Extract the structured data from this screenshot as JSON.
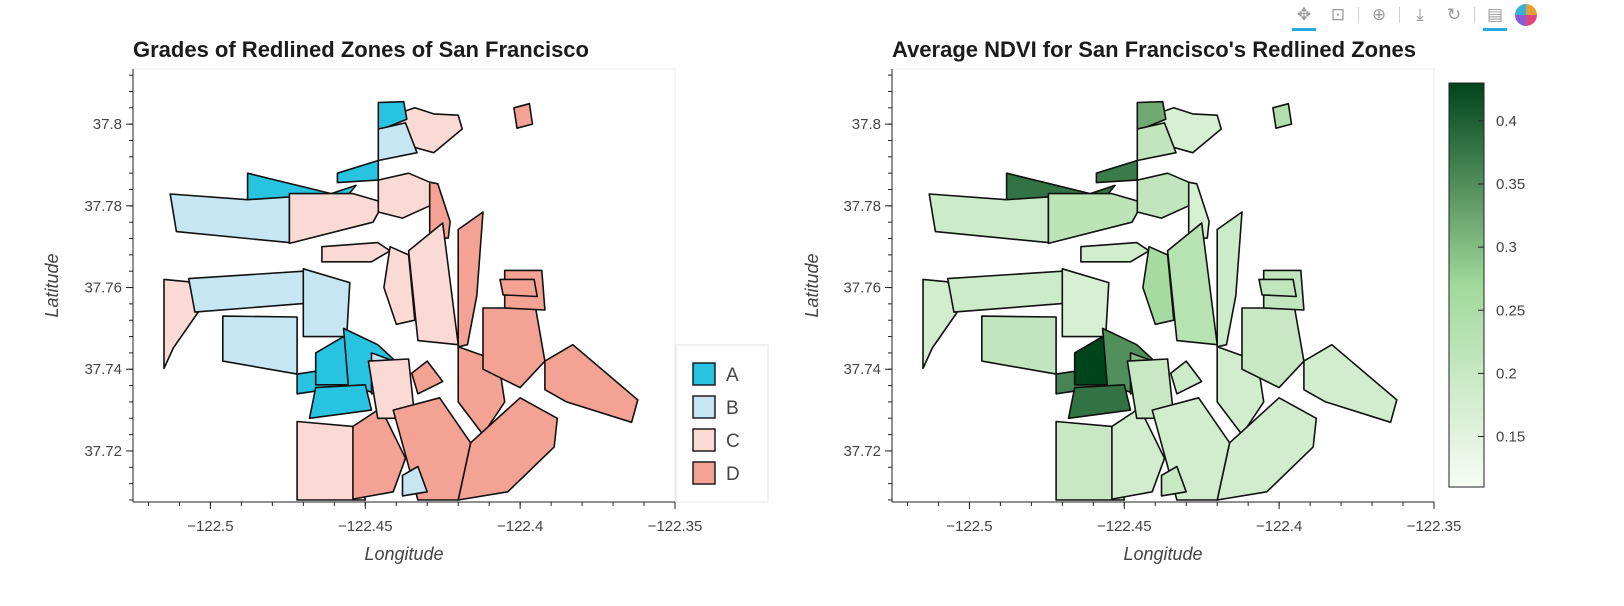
{
  "toolbar": {
    "tools": [
      {
        "name": "pan-tool-icon",
        "glyph": "✥",
        "active": true
      },
      {
        "name": "box-zoom-tool-icon",
        "glyph": "⊡",
        "active": false
      },
      {
        "name": "wheel-zoom-tool-icon",
        "glyph": "⊕",
        "active": false
      },
      {
        "name": "save-tool-icon",
        "glyph": "⤓",
        "active": false
      },
      {
        "name": "reset-tool-icon",
        "glyph": "↻",
        "active": false
      },
      {
        "name": "hover-tool-icon",
        "glyph": "▤",
        "active": true
      },
      {
        "name": "bokeh-logo-icon",
        "glyph": "",
        "active": false
      }
    ]
  },
  "chart_data": [
    {
      "type": "choropleth-map",
      "title": "Grades of Redlined Zones of San Francisco",
      "xlabel": "Longitude",
      "ylabel": "Latitude",
      "xlim": [
        -122.525,
        -122.35
      ],
      "ylim": [
        37.7075,
        37.8135
      ],
      "xticks": [
        -122.5,
        -122.45,
        -122.4,
        -122.35
      ],
      "xtick_labels": [
        "−122.5",
        "−122.45",
        "−122.4",
        "−122.35"
      ],
      "yticks": [
        37.72,
        37.74,
        37.76,
        37.78,
        37.8
      ],
      "ytick_labels": [
        "37.72",
        "37.74",
        "37.76",
        "37.78",
        "37.8"
      ],
      "legend": {
        "position": "right",
        "entries": [
          {
            "label": "A",
            "color": "#28c3e0"
          },
          {
            "label": "B",
            "color": "#c5e6f2"
          },
          {
            "label": "C",
            "color": "#fbdad5"
          },
          {
            "label": "D",
            "color": "#f3a294"
          }
        ]
      },
      "zones": [
        {
          "id": 1,
          "grade": "D",
          "ndvi": 0.17,
          "coords": [
            [
              -122.4292,
              37.7858
            ],
            [
              -122.4266,
              37.7854
            ],
            [
              -122.4226,
              37.7762
            ],
            [
              -122.4232,
              37.7721
            ],
            [
              -122.4292,
              37.7721
            ]
          ]
        },
        {
          "id": 2,
          "grade": "C",
          "ndvi": 0.17,
          "coords": [
            [
              -122.4411,
              37.8022
            ],
            [
              -122.434,
              37.804
            ],
            [
              -122.4279,
              37.8025
            ],
            [
              -122.42,
              37.8022
            ],
            [
              -122.4187,
              37.7988
            ],
            [
              -122.4279,
              37.793
            ],
            [
              -122.4421,
              37.796
            ]
          ]
        },
        {
          "id": 3,
          "grade": "A",
          "ndvi": 0.32,
          "coords": [
            [
              -122.4458,
              37.8053
            ],
            [
              -122.4376,
              37.8055
            ],
            [
              -122.4366,
              37.8012
            ],
            [
              -122.4458,
              37.7984
            ]
          ]
        },
        {
          "id": 4,
          "grade": "B",
          "ndvi": 0.21,
          "coords": [
            [
              -122.4458,
              37.7988
            ],
            [
              -122.437,
              37.8003
            ],
            [
              -122.4333,
              37.793
            ],
            [
              -122.4458,
              37.7911
            ]
          ]
        },
        {
          "id": 5,
          "grade": "A",
          "ndvi": 0.38,
          "coords": [
            [
              -122.488,
              37.788
            ],
            [
              -122.461,
              37.783
            ],
            [
              -122.453,
              37.785
            ],
            [
              -122.4568,
              37.7815
            ],
            [
              -122.488,
              37.7815
            ]
          ]
        },
        {
          "id": 6,
          "grade": "A",
          "ndvi": 0.37,
          "coords": [
            [
              -122.4458,
              37.7911
            ],
            [
              -122.459,
              37.788
            ],
            [
              -122.459,
              37.7857
            ],
            [
              -122.4458,
              37.7863
            ]
          ]
        },
        {
          "id": 7,
          "grade": "B",
          "ndvi": 0.19,
          "coords": [
            [
              -122.513,
              37.7829
            ],
            [
              -122.488,
              37.7815
            ],
            [
              -122.4745,
              37.7822
            ],
            [
              -122.4745,
              37.771
            ],
            [
              -122.511,
              37.7737
            ]
          ]
        },
        {
          "id": 8,
          "grade": "C",
          "ndvi": 0.22,
          "coords": [
            [
              -122.4745,
              37.783
            ],
            [
              -122.454,
              37.783
            ],
            [
              -122.444,
              37.7808
            ],
            [
              -122.4475,
              37.776
            ],
            [
              -122.4745,
              37.7708
            ]
          ]
        },
        {
          "id": 9,
          "grade": "C",
          "ndvi": 0.21,
          "coords": [
            [
              -122.4458,
              37.7863
            ],
            [
              -122.436,
              37.788
            ],
            [
              -122.4292,
              37.7858
            ],
            [
              -122.4292,
              37.78
            ],
            [
              -122.438,
              37.777
            ],
            [
              -122.4458,
              37.7785
            ]
          ]
        },
        {
          "id": 10,
          "grade": "C",
          "ndvi": 0.18,
          "coords": [
            [
              -122.464,
              37.77
            ],
            [
              -122.446,
              37.771
            ],
            [
              -122.442,
              37.769
            ],
            [
              -122.448,
              37.7663
            ],
            [
              -122.464,
              37.7663
            ]
          ]
        },
        {
          "id": 11,
          "grade": "C",
          "ndvi": 0.18,
          "coords": [
            [
              -122.515,
              37.762
            ],
            [
              -122.507,
              37.7614
            ],
            [
              -122.503,
              37.755
            ],
            [
              -122.512,
              37.7452
            ],
            [
              -122.515,
              37.7402
            ]
          ]
        },
        {
          "id": 12,
          "grade": "B",
          "ndvi": 0.19,
          "coords": [
            [
              -122.507,
              37.7622
            ],
            [
              -122.47,
              37.764
            ],
            [
              -122.468,
              37.7562
            ],
            [
              -122.505,
              37.754
            ]
          ]
        },
        {
          "id": 13,
          "grade": "B",
          "ndvi": 0.17,
          "coords": [
            [
              -122.47,
              37.7646
            ],
            [
              -122.455,
              37.7612
            ],
            [
              -122.456,
              37.748
            ],
            [
              -122.47,
              37.748
            ]
          ]
        },
        {
          "id": 14,
          "grade": "B",
          "ndvi": 0.21,
          "coords": [
            [
              -122.496,
              37.753
            ],
            [
              -122.472,
              37.7528
            ],
            [
              -122.472,
              37.7388
            ],
            [
              -122.496,
              37.742
            ]
          ]
        },
        {
          "id": 15,
          "grade": "A",
          "ndvi": 0.36,
          "coords": [
            [
              -122.472,
              37.7388
            ],
            [
              -122.46,
              37.7402
            ],
            [
              -122.4582,
              37.7355
            ],
            [
              -122.472,
              37.734
            ]
          ]
        },
        {
          "id": 16,
          "grade": "A",
          "ndvi": 0.43,
          "coords": [
            [
              -122.466,
              37.744
            ],
            [
              -122.457,
              37.748
            ],
            [
              -122.45,
              37.745
            ],
            [
              -122.455,
              37.7362
            ],
            [
              -122.466,
              37.7362
            ]
          ]
        },
        {
          "id": 17,
          "grade": "A",
          "ndvi": 0.35,
          "coords": [
            [
              -122.457,
              37.75
            ],
            [
              -122.446,
              37.746
            ],
            [
              -122.44,
              37.7418
            ],
            [
              -122.446,
              37.734
            ],
            [
              -122.4555,
              37.736
            ]
          ]
        },
        {
          "id": 18,
          "grade": "A",
          "ndvi": 0.38,
          "coords": [
            [
              -122.466,
              37.7355
            ],
            [
              -122.45,
              37.7362
            ],
            [
              -122.448,
              37.73
            ],
            [
              -122.468,
              37.728
            ]
          ]
        },
        {
          "id": 19,
          "grade": "B",
          "ndvi": 0.3,
          "coords": [
            [
              -122.448,
              37.744
            ],
            [
              -122.44,
              37.7418
            ],
            [
              -122.439,
              37.736
            ],
            [
              -122.448,
              37.734
            ]
          ]
        },
        {
          "id": 20,
          "grade": "C",
          "ndvi": 0.2,
          "coords": [
            [
              -122.472,
              37.7272
            ],
            [
              -122.454,
              37.726
            ],
            [
              -122.45,
              37.708
            ],
            [
              -122.472,
              37.708
            ]
          ]
        },
        {
          "id": 21,
          "grade": "D",
          "ndvi": 0.18,
          "coords": [
            [
              -122.454,
              37.726
            ],
            [
              -122.445,
              37.7305
            ],
            [
              -122.437,
              37.7182
            ],
            [
              -122.441,
              37.71
            ],
            [
              -122.454,
              37.7082
            ]
          ]
        },
        {
          "id": 22,
          "grade": "C",
          "ndvi": 0.2,
          "coords": [
            [
              -122.449,
              37.742
            ],
            [
              -122.436,
              37.7425
            ],
            [
              -122.434,
              37.728
            ],
            [
              -122.446,
              37.728
            ]
          ]
        },
        {
          "id": 23,
          "grade": "D",
          "ndvi": 0.19,
          "coords": [
            [
              -122.435,
              37.739
            ],
            [
              -122.43,
              37.742
            ],
            [
              -122.425,
              37.737
            ],
            [
              -122.433,
              37.734
            ]
          ]
        },
        {
          "id": 24,
          "grade": "C",
          "ndvi": 0.26,
          "coords": [
            [
              -122.442,
              37.77
            ],
            [
              -122.436,
              37.768
            ],
            [
              -122.434,
              37.752
            ],
            [
              -122.44,
              37.751
            ],
            [
              -122.444,
              37.76
            ]
          ]
        },
        {
          "id": 25,
          "grade": "C",
          "ndvi": 0.23,
          "coords": [
            [
              -122.436,
              37.769
            ],
            [
              -122.425,
              37.7758
            ],
            [
              -122.42,
              37.746
            ],
            [
              -122.433,
              37.747
            ]
          ]
        },
        {
          "id": 26,
          "grade": "D",
          "ndvi": 0.19,
          "coords": [
            [
              -122.42,
              37.7742
            ],
            [
              -122.412,
              37.7785
            ],
            [
              -122.414,
              37.758
            ],
            [
              -122.417,
              37.746
            ],
            [
              -122.42,
              37.7455
            ]
          ]
        },
        {
          "id": 27,
          "grade": "D",
          "ndvi": 0.18,
          "coords": [
            [
              -122.42,
              37.7455
            ],
            [
              -122.407,
              37.742
            ],
            [
              -122.405,
              37.732
            ],
            [
              -122.412,
              37.724
            ],
            [
              -122.42,
              37.732
            ]
          ]
        },
        {
          "id": 28,
          "grade": "D",
          "ndvi": 0.2,
          "coords": [
            [
              -122.412,
              37.755
            ],
            [
              -122.395,
              37.755
            ],
            [
              -122.392,
              37.742
            ],
            [
              -122.4,
              37.7355
            ],
            [
              -122.412,
              37.74
            ]
          ]
        },
        {
          "id": 29,
          "grade": "D",
          "ndvi": 0.21,
          "coords": [
            [
              -122.405,
              37.7642
            ],
            [
              -122.393,
              37.7642
            ],
            [
              -122.392,
              37.7545
            ],
            [
              -122.405,
              37.755
            ]
          ]
        },
        {
          "id": 30,
          "grade": "D",
          "ndvi": 0.21,
          "coords": [
            [
              -122.4065,
              37.762
            ],
            [
              -122.3955,
              37.762
            ],
            [
              -122.3945,
              37.7578
            ],
            [
              -122.4055,
              37.7582
            ]
          ]
        },
        {
          "id": 31,
          "grade": "D",
          "ndvi": 0.18,
          "coords": [
            [
              -122.392,
              37.742
            ],
            [
              -122.383,
              37.746
            ],
            [
              -122.362,
              37.7325
            ],
            [
              -122.364,
              37.727
            ],
            [
              -122.385,
              37.732
            ],
            [
              -122.392,
              37.735
            ]
          ]
        },
        {
          "id": 32,
          "grade": "D",
          "ndvi": 0.18,
          "coords": [
            [
              -122.416,
              37.722
            ],
            [
              -122.4,
              37.733
            ],
            [
              -122.388,
              37.728
            ],
            [
              -122.389,
              37.721
            ],
            [
              -122.404,
              37.71
            ],
            [
              -122.42,
              37.708
            ]
          ]
        },
        {
          "id": 33,
          "grade": "D",
          "ndvi": 0.18,
          "coords": [
            [
              -122.441,
              37.73
            ],
            [
              -122.426,
              37.733
            ],
            [
              -122.416,
              37.722
            ],
            [
              -122.42,
              37.708
            ],
            [
              -122.433,
              37.708
            ]
          ]
        },
        {
          "id": 34,
          "grade": "B",
          "ndvi": 0.2,
          "coords": [
            [
              -122.438,
              37.714
            ],
            [
              -122.433,
              37.7162
            ],
            [
              -122.43,
              37.71
            ],
            [
              -122.438,
              37.709
            ]
          ]
        },
        {
          "id": 35,
          "grade": "D",
          "ndvi": 0.24,
          "coords": [
            [
              -122.402,
              37.804
            ],
            [
              -122.397,
              37.805
            ],
            [
              -122.396,
              37.8
            ],
            [
              -122.401,
              37.799
            ]
          ]
        }
      ]
    },
    {
      "type": "choropleth-map",
      "title": "Average NDVI for San Francisco's Redlined Zones",
      "xlabel": "Longitude",
      "ylabel": "Latitude",
      "xlim": [
        -122.525,
        -122.35
      ],
      "ylim": [
        37.7075,
        37.8135
      ],
      "xticks": [
        -122.5,
        -122.45,
        -122.4,
        -122.35
      ],
      "xtick_labels": [
        "−122.5",
        "−122.45",
        "−122.4",
        "−122.35"
      ],
      "yticks": [
        37.72,
        37.74,
        37.76,
        37.78,
        37.8
      ],
      "ytick_labels": [
        "37.72",
        "37.74",
        "37.76",
        "37.78",
        "37.8"
      ],
      "colorbar": {
        "min": 0.11,
        "max": 0.43,
        "low_color": "#f7fcf5",
        "mid_color": "#a1d99b",
        "high_color": "#00441b",
        "ticks": [
          0.15,
          0.2,
          0.25,
          0.3,
          0.35,
          0.4
        ],
        "tick_labels": [
          "0.15",
          "0.2",
          "0.25",
          "0.3",
          "0.35",
          "0.4"
        ]
      }
    }
  ]
}
